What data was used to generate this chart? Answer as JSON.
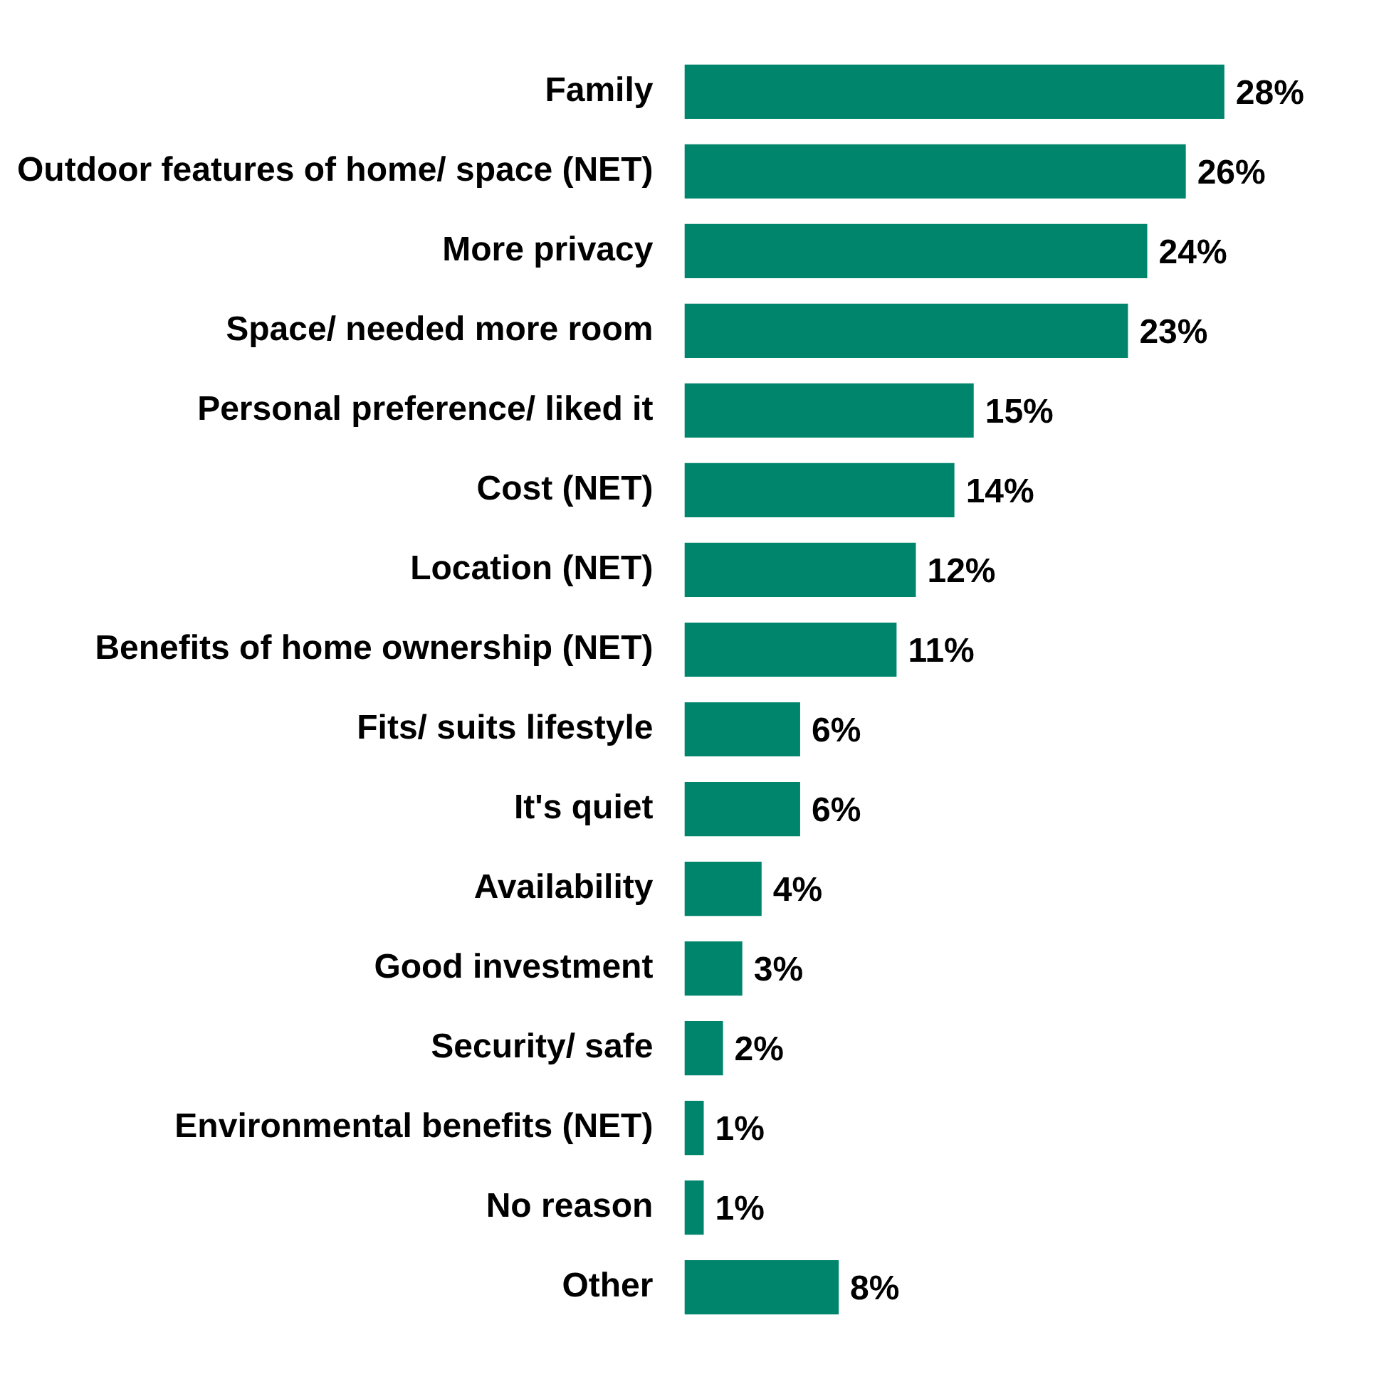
{
  "chart_data": {
    "type": "bar",
    "orientation": "horizontal",
    "categories": [
      "Family",
      "Outdoor features of home/ space (NET)",
      "More privacy",
      "Space/ needed more room",
      "Personal preference/ liked it",
      "Cost (NET)",
      "Location (NET)",
      "Benefits of home ownership (NET)",
      "Fits/ suits lifestyle",
      "It's quiet",
      "Availability",
      "Good investment",
      "Security/ safe",
      "Environmental benefits (NET)",
      "No reason",
      "Other"
    ],
    "values": [
      28,
      26,
      24,
      23,
      15,
      14,
      12,
      11,
      6,
      6,
      4,
      3,
      2,
      1,
      1,
      8
    ],
    "value_labels": [
      "28%",
      "26%",
      "24%",
      "23%",
      "15%",
      "14%",
      "12%",
      "11%",
      "6%",
      "6%",
      "4%",
      "3%",
      "2%",
      "1%",
      "1%",
      "8%"
    ],
    "color": "#00856d",
    "legend": false
  }
}
